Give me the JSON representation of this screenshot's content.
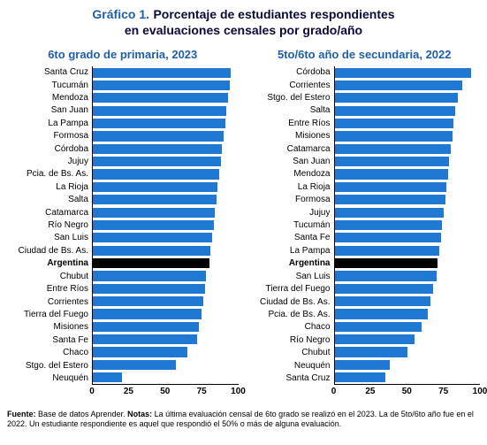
{
  "title": {
    "prefix": "Gráfico 1.",
    "main_line1": "Porcentaje de estudiantes respondientes",
    "main_line2": "en evaluaciones censales por grado/año"
  },
  "style": {
    "accent_color": "#1f5fa8",
    "title_color": "#0a0a3a",
    "bar_color": "#1f78d1",
    "highlight_bar_color": "#000000",
    "background_color": "#ffffff",
    "font_family": "Arial",
    "title_fontsize": 14,
    "panel_title_fontsize": 13,
    "ylabel_fontsize": 10,
    "xtick_fontsize": 10,
    "footnote_fontsize": 9
  },
  "axis": {
    "xmin": 0,
    "xmax": 100,
    "xticks": [
      0,
      25,
      50,
      75,
      100
    ]
  },
  "left_chart": {
    "type": "bar-horizontal",
    "title": "6to grado de primaria, 2023",
    "rows": [
      {
        "label": "Santa Cruz",
        "value": 95,
        "highlight": false
      },
      {
        "label": "Tucumán",
        "value": 94,
        "highlight": false
      },
      {
        "label": "Mendoza",
        "value": 93,
        "highlight": false
      },
      {
        "label": "San Juan",
        "value": 92,
        "highlight": false
      },
      {
        "label": "La Pampa",
        "value": 91,
        "highlight": false
      },
      {
        "label": "Formosa",
        "value": 90,
        "highlight": false
      },
      {
        "label": "Córdoba",
        "value": 89,
        "highlight": false
      },
      {
        "label": "Jujuy",
        "value": 88,
        "highlight": false
      },
      {
        "label": "Pcia. de Bs. As.",
        "value": 87,
        "highlight": false
      },
      {
        "label": "La Rioja",
        "value": 86,
        "highlight": false
      },
      {
        "label": "Salta",
        "value": 85,
        "highlight": false
      },
      {
        "label": "Catamarca",
        "value": 84,
        "highlight": false
      },
      {
        "label": "Río Negro",
        "value": 83,
        "highlight": false
      },
      {
        "label": "San Luis",
        "value": 82,
        "highlight": false
      },
      {
        "label": "Ciudad de Bs. As.",
        "value": 81,
        "highlight": false
      },
      {
        "label": "Argentina",
        "value": 80,
        "highlight": true
      },
      {
        "label": "Chubut",
        "value": 78,
        "highlight": false
      },
      {
        "label": "Entre Ríos",
        "value": 77,
        "highlight": false
      },
      {
        "label": "Corrientes",
        "value": 76,
        "highlight": false
      },
      {
        "label": "Tierra del Fuego",
        "value": 75,
        "highlight": false
      },
      {
        "label": "Misiones",
        "value": 73,
        "highlight": false
      },
      {
        "label": "Santa Fe",
        "value": 72,
        "highlight": false
      },
      {
        "label": "Chaco",
        "value": 65,
        "highlight": false
      },
      {
        "label": "Stgo. del Estero",
        "value": 57,
        "highlight": false
      },
      {
        "label": "Neuquén",
        "value": 20,
        "highlight": false
      }
    ]
  },
  "right_chart": {
    "type": "bar-horizontal",
    "title": "5to/6to año de secundaria, 2022",
    "rows": [
      {
        "label": "Córdoba",
        "value": 94,
        "highlight": false
      },
      {
        "label": "Corrientes",
        "value": 88,
        "highlight": false
      },
      {
        "label": "Stgo. del Estero",
        "value": 85,
        "highlight": false
      },
      {
        "label": "Salta",
        "value": 83,
        "highlight": false
      },
      {
        "label": "Entre Ríos",
        "value": 82,
        "highlight": false
      },
      {
        "label": "Misiones",
        "value": 81,
        "highlight": false
      },
      {
        "label": "Catamarca",
        "value": 80,
        "highlight": false
      },
      {
        "label": "San Juan",
        "value": 79,
        "highlight": false
      },
      {
        "label": "Mendoza",
        "value": 78,
        "highlight": false
      },
      {
        "label": "La Rioja",
        "value": 77,
        "highlight": false
      },
      {
        "label": "Formosa",
        "value": 76,
        "highlight": false
      },
      {
        "label": "Jujuy",
        "value": 75,
        "highlight": false
      },
      {
        "label": "Tucumán",
        "value": 74,
        "highlight": false
      },
      {
        "label": "Santa Fe",
        "value": 73,
        "highlight": false
      },
      {
        "label": "La Pampa",
        "value": 72,
        "highlight": false
      },
      {
        "label": "Argentina",
        "value": 71,
        "highlight": true
      },
      {
        "label": "San Luis",
        "value": 70,
        "highlight": false
      },
      {
        "label": "Tierra del Fuego",
        "value": 68,
        "highlight": false
      },
      {
        "label": "Ciudad de Bs. As.",
        "value": 66,
        "highlight": false
      },
      {
        "label": "Pcia. de Bs. As.",
        "value": 64,
        "highlight": false
      },
      {
        "label": "Chaco",
        "value": 60,
        "highlight": false
      },
      {
        "label": "Río Negro",
        "value": 55,
        "highlight": false
      },
      {
        "label": "Chubut",
        "value": 50,
        "highlight": false
      },
      {
        "label": "Neuquén",
        "value": 38,
        "highlight": false
      },
      {
        "label": "Santa Cruz",
        "value": 35,
        "highlight": false
      }
    ]
  },
  "footnote": {
    "source_label": "Fuente:",
    "source_text": " Base de datos Aprender. ",
    "notes_label": "Notas:",
    "notes_text": " La última evaluación censal de 6to grado se realizó en el 2023. La de 5to/6to año fue en el 2022. Un estudiante respondiente es aquel que respondió el 50% o más de alguna evaluación."
  }
}
